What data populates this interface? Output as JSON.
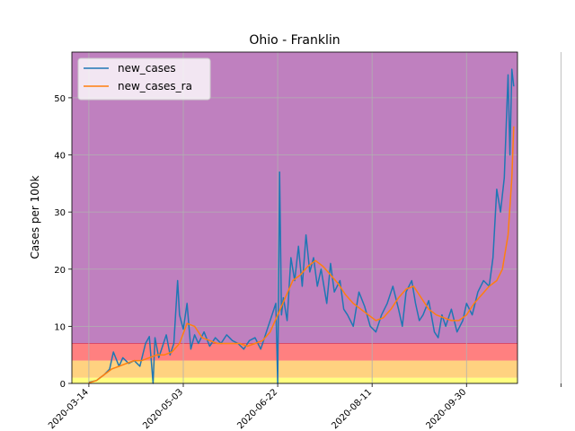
{
  "chart_data": {
    "type": "line",
    "title": "Ohio - Franklin",
    "xlabel": "",
    "ylabel": "Cases per 100k",
    "ylim": [
      0,
      58
    ],
    "xlim": [
      "2020-03-05",
      "2020-10-27"
    ],
    "grid": true,
    "legend_position": "top-left",
    "x_ticks": [
      "2020-03-14",
      "2020-05-03",
      "2020-06-22",
      "2020-08-11",
      "2020-09-30",
      ""
    ],
    "y_ticks": [
      "0",
      "10",
      "20",
      "30",
      "40",
      "50"
    ],
    "bands": [
      {
        "from": 0,
        "to": 1,
        "color": "#ffff80"
      },
      {
        "from": 1,
        "to": 4,
        "color": "#ffd280"
      },
      {
        "from": 4,
        "to": 7,
        "color": "#ff8080"
      },
      {
        "from": 7,
        "to": 58,
        "color": "#bf80bf"
      }
    ],
    "series": [
      {
        "name": "new_cases",
        "color": "#1f77b4",
        "x": [
          "2020-03-14",
          "2020-03-18",
          "2020-03-22",
          "2020-03-25",
          "2020-03-27",
          "2020-03-30",
          "2020-04-01",
          "2020-04-04",
          "2020-04-07",
          "2020-04-10",
          "2020-04-13",
          "2020-04-15",
          "2020-04-17",
          "2020-04-18",
          "2020-04-20",
          "2020-04-22",
          "2020-04-24",
          "2020-04-26",
          "2020-04-28",
          "2020-04-30",
          "2020-05-01",
          "2020-05-03",
          "2020-05-05",
          "2020-05-07",
          "2020-05-09",
          "2020-05-11",
          "2020-05-14",
          "2020-05-17",
          "2020-05-20",
          "2020-05-23",
          "2020-05-26",
          "2020-05-29",
          "2020-06-01",
          "2020-06-04",
          "2020-06-07",
          "2020-06-10",
          "2020-06-13",
          "2020-06-16",
          "2020-06-19",
          "2020-06-21",
          "2020-06-22",
          "2020-06-23",
          "2020-06-24",
          "2020-06-25",
          "2020-06-27",
          "2020-06-29",
          "2020-07-01",
          "2020-07-03",
          "2020-07-05",
          "2020-07-07",
          "2020-07-09",
          "2020-07-11",
          "2020-07-13",
          "2020-07-15",
          "2020-07-18",
          "2020-07-20",
          "2020-07-22",
          "2020-07-25",
          "2020-07-27",
          "2020-07-29",
          "2020-08-01",
          "2020-08-04",
          "2020-08-07",
          "2020-08-10",
          "2020-08-13",
          "2020-08-16",
          "2020-08-19",
          "2020-08-22",
          "2020-08-25",
          "2020-08-27",
          "2020-08-29",
          "2020-09-01",
          "2020-09-03",
          "2020-09-05",
          "2020-09-07",
          "2020-09-10",
          "2020-09-13",
          "2020-09-15",
          "2020-09-17",
          "2020-09-19",
          "2020-09-22",
          "2020-09-25",
          "2020-09-28",
          "2020-09-30",
          "2020-10-03",
          "2020-10-06",
          "2020-10-09",
          "2020-10-12",
          "2020-10-14",
          "2020-10-16",
          "2020-10-18",
          "2020-10-20",
          "2020-10-22",
          "2020-10-23",
          "2020-10-24",
          "2020-10-25"
        ],
        "values": [
          0.2,
          0.5,
          1.5,
          2.5,
          5.5,
          3.0,
          4.5,
          3.5,
          4.0,
          3.0,
          7.0,
          8.2,
          0.0,
          8.0,
          4.5,
          6.5,
          8.5,
          5.0,
          7.0,
          18.0,
          12.0,
          9.5,
          14.0,
          6.0,
          8.5,
          7.0,
          9.0,
          6.5,
          8.0,
          7.0,
          8.5,
          7.5,
          7.0,
          6.0,
          7.5,
          8.0,
          6.0,
          9.0,
          12.0,
          14.0,
          0.0,
          37.0,
          12.0,
          15.0,
          11.0,
          22.0,
          18.0,
          24.0,
          17.0,
          26.0,
          19.5,
          22.0,
          17.0,
          20.0,
          14.0,
          21.0,
          16.0,
          18.0,
          13.0,
          12.0,
          10.0,
          16.0,
          13.5,
          10.0,
          9.0,
          12.0,
          14.0,
          17.0,
          13.0,
          10.0,
          16.0,
          18.0,
          14.0,
          11.0,
          12.0,
          14.5,
          9.0,
          8.0,
          12.0,
          10.0,
          13.0,
          9.0,
          11.0,
          14.0,
          12.0,
          16.0,
          18.0,
          17.0,
          22.0,
          34.0,
          30.0,
          36.0,
          54.0,
          40.0,
          55.0,
          52.0
        ]
      },
      {
        "name": "new_cases_ra",
        "color": "#ff7f0e",
        "x": [
          "2020-03-14",
          "2020-03-18",
          "2020-03-22",
          "2020-03-26",
          "2020-03-30",
          "2020-04-03",
          "2020-04-07",
          "2020-04-11",
          "2020-04-15",
          "2020-04-19",
          "2020-04-23",
          "2020-04-27",
          "2020-05-01",
          "2020-05-05",
          "2020-05-09",
          "2020-05-13",
          "2020-05-17",
          "2020-05-21",
          "2020-05-25",
          "2020-05-29",
          "2020-06-02",
          "2020-06-06",
          "2020-06-10",
          "2020-06-14",
          "2020-06-18",
          "2020-06-22",
          "2020-06-26",
          "2020-06-30",
          "2020-07-04",
          "2020-07-08",
          "2020-07-12",
          "2020-07-16",
          "2020-07-20",
          "2020-07-24",
          "2020-07-28",
          "2020-08-01",
          "2020-08-05",
          "2020-08-09",
          "2020-08-13",
          "2020-08-17",
          "2020-08-21",
          "2020-08-25",
          "2020-08-29",
          "2020-09-02",
          "2020-09-06",
          "2020-09-10",
          "2020-09-14",
          "2020-09-18",
          "2020-09-22",
          "2020-09-26",
          "2020-09-30",
          "2020-10-04",
          "2020-10-08",
          "2020-10-12",
          "2020-10-16",
          "2020-10-19",
          "2020-10-22",
          "2020-10-24",
          "2020-10-25"
        ],
        "values": [
          0.1,
          0.5,
          1.5,
          2.5,
          3.0,
          3.5,
          4.0,
          4.0,
          4.5,
          5.0,
          5.0,
          5.5,
          7.0,
          10.5,
          10.0,
          8.0,
          7.5,
          7.0,
          7.0,
          7.0,
          7.0,
          6.5,
          7.0,
          7.5,
          9.0,
          12.0,
          15.0,
          18.0,
          19.0,
          20.5,
          21.5,
          20.5,
          19.0,
          17.5,
          15.5,
          14.0,
          13.0,
          12.0,
          11.0,
          11.5,
          13.0,
          15.0,
          16.5,
          17.0,
          15.0,
          13.0,
          12.0,
          11.5,
          11.0,
          11.0,
          12.0,
          14.0,
          15.5,
          17.0,
          18.0,
          20.0,
          26.0,
          36.0,
          45.0
        ]
      }
    ]
  }
}
